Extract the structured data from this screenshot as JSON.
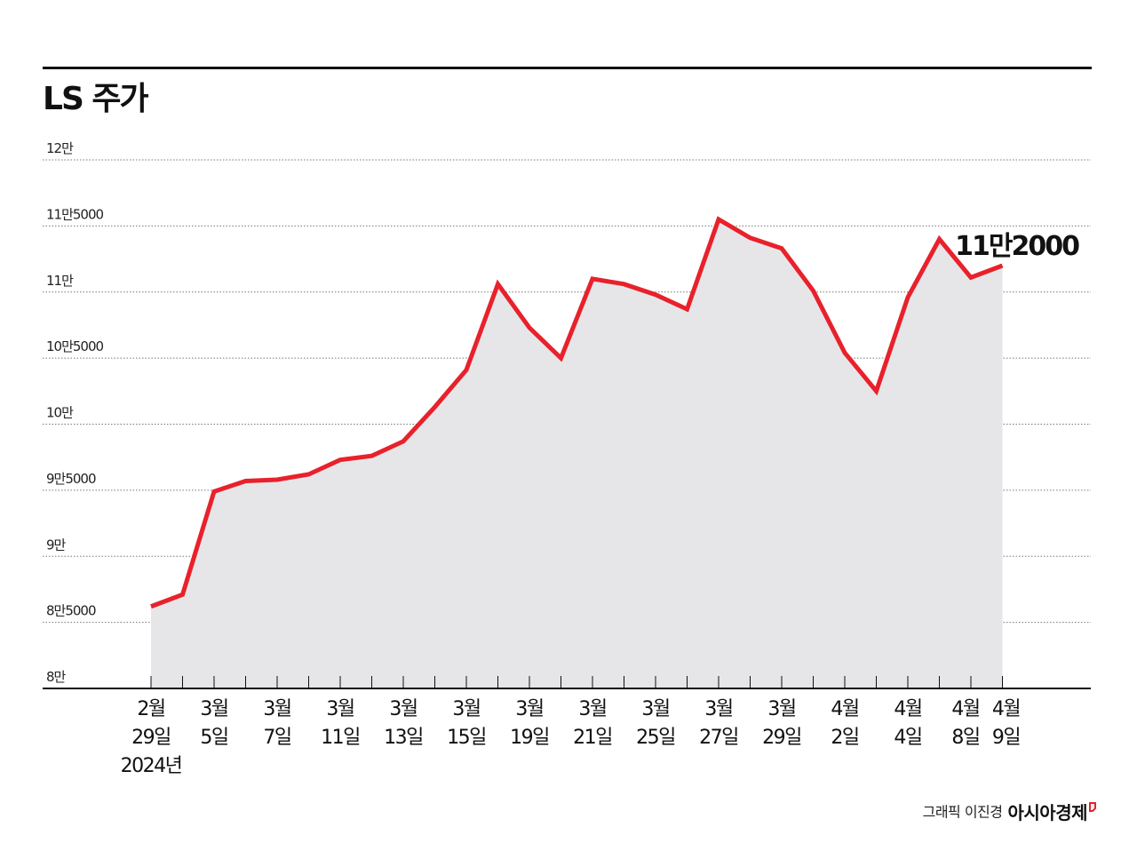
{
  "title": "LS 주가",
  "credit": {
    "byline": "그래픽 이진경",
    "brand": "아시아경제"
  },
  "colors": {
    "line": "#e8212b",
    "area": "#e6e6e9",
    "grid": "#777777",
    "axis": "#111111",
    "brand_mark": "#e8212b"
  },
  "chart_data": {
    "type": "area",
    "title": "LS 주가",
    "xlabel": "",
    "ylabel": "",
    "ylim": [
      80000,
      120000
    ],
    "grid": true,
    "y_ticks": [
      {
        "value": 120000,
        "label": "12만"
      },
      {
        "value": 115000,
        "label": "11만5000"
      },
      {
        "value": 110000,
        "label": "11만"
      },
      {
        "value": 105000,
        "label": "10만5000"
      },
      {
        "value": 100000,
        "label": "10만"
      },
      {
        "value": 95000,
        "label": "9만5000"
      },
      {
        "value": 90000,
        "label": "9만"
      },
      {
        "value": 85000,
        "label": "8만5000"
      },
      {
        "value": 80000,
        "label": "8만"
      }
    ],
    "x_tick_labels": [
      {
        "index": 0,
        "lines": [
          "2월",
          "29일",
          "2024년"
        ]
      },
      {
        "index": 2,
        "lines": [
          "3월",
          "5일"
        ]
      },
      {
        "index": 4,
        "lines": [
          "3월",
          "7일"
        ]
      },
      {
        "index": 6,
        "lines": [
          "3월",
          "11일"
        ]
      },
      {
        "index": 8,
        "lines": [
          "3월",
          "13일"
        ]
      },
      {
        "index": 10,
        "lines": [
          "3월",
          "15일"
        ]
      },
      {
        "index": 12,
        "lines": [
          "3월",
          "19일"
        ]
      },
      {
        "index": 14,
        "lines": [
          "3월",
          "21일"
        ]
      },
      {
        "index": 16,
        "lines": [
          "3월",
          "25일"
        ]
      },
      {
        "index": 18,
        "lines": [
          "3월",
          "27일"
        ]
      },
      {
        "index": 20,
        "lines": [
          "3월",
          "29일"
        ]
      },
      {
        "index": 22,
        "lines": [
          "4월",
          "2일"
        ]
      },
      {
        "index": 24,
        "lines": [
          "4월",
          "4일"
        ]
      },
      {
        "index": 26,
        "lines": [
          "4월",
          "8일"
        ]
      },
      {
        "index": 27,
        "lines": [
          "4월",
          "9일"
        ]
      }
    ],
    "series": [
      {
        "values": [
          86200,
          87100,
          94900,
          95700,
          95800,
          96200,
          97300,
          97600,
          98700,
          101300,
          104100,
          110600,
          107300,
          105000,
          111000,
          110600,
          109800,
          108700,
          115500,
          114100,
          113300,
          110100,
          105400,
          102500,
          109600,
          114000,
          111100,
          112000
        ]
      }
    ],
    "annotations": [
      {
        "index": 27,
        "text": "11만2000"
      }
    ]
  }
}
